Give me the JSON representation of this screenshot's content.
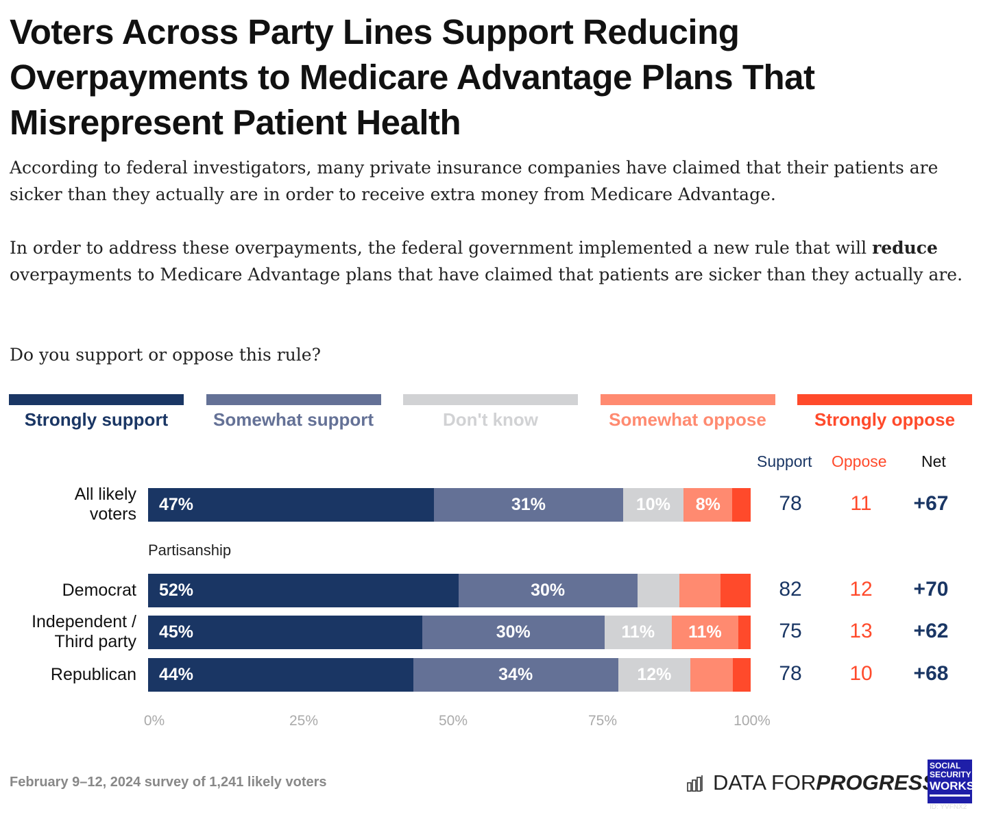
{
  "chart_data": {
    "type": "bar",
    "orientation": "horizontal-stacked",
    "title": "Voters Across Party Lines Support Reducing Overpayments to Medicare Advantage Plans That Misrepresent Patient Health",
    "subtitle_1": "According to federal investigators, many private insurance companies have claimed that their patients are sicker than they actually are in order to receive extra money from Medicare Advantage.",
    "subtitle_2_pre": "In order to address these overpayments, the federal government implemented a new rule that will ",
    "subtitle_2_bold": "reduce",
    "subtitle_2_post": " overpayments to Medicare Advantage plans that have claimed that patients are sicker than they actually are.",
    "question": "Do you support or oppose this rule?",
    "legend": [
      {
        "name": "Strongly support",
        "color": "#1a3664"
      },
      {
        "name": "Somewhat support",
        "color": "#647196"
      },
      {
        "name": "Don't know",
        "color": "#d1d2d4"
      },
      {
        "name": "Somewhat oppose",
        "color": "#ff8a70"
      },
      {
        "name": "Strongly oppose",
        "color": "#ff4a2b"
      }
    ],
    "group_label": "Partisanship",
    "columns": {
      "support": "Support",
      "oppose": "Oppose",
      "net": "Net"
    },
    "rows": [
      {
        "label": [
          "All likely",
          "voters"
        ],
        "values": [
          47,
          31,
          10,
          8,
          3
        ],
        "labels": [
          "47%",
          "31%",
          "10%",
          "8%",
          ""
        ],
        "support": "78",
        "oppose": "11",
        "net": "+67"
      },
      {
        "label": [
          "Democrat"
        ],
        "values": [
          52,
          30,
          7,
          7,
          5
        ],
        "labels": [
          "52%",
          "30%",
          "",
          "",
          ""
        ],
        "support": "82",
        "oppose": "12",
        "net": "+70"
      },
      {
        "label": [
          "Independent /",
          "Third party"
        ],
        "values": [
          45,
          30,
          11,
          11,
          2
        ],
        "labels": [
          "45%",
          "30%",
          "11%",
          "11%",
          ""
        ],
        "support": "75",
        "oppose": "13",
        "net": "+62"
      },
      {
        "label": [
          "Republican"
        ],
        "values": [
          44,
          34,
          12,
          7,
          3
        ],
        "labels": [
          "44%",
          "34%",
          "12%",
          "",
          ""
        ],
        "support": "78",
        "oppose": "10",
        "net": "+68"
      }
    ],
    "xlim": [
      0,
      100
    ],
    "ticks": [
      "0%",
      "25%",
      "50%",
      "75%",
      "100%"
    ],
    "source": "February 9–12, 2024 survey of 1,241 likely voters"
  },
  "branding": {
    "dfp_regular": "DATA FOR ",
    "dfp_bold": "PROGRESS",
    "ssw": [
      "SOCIAL",
      "SECURITY",
      "WORKS."
    ],
    "id": "ID: YVFNX2"
  }
}
